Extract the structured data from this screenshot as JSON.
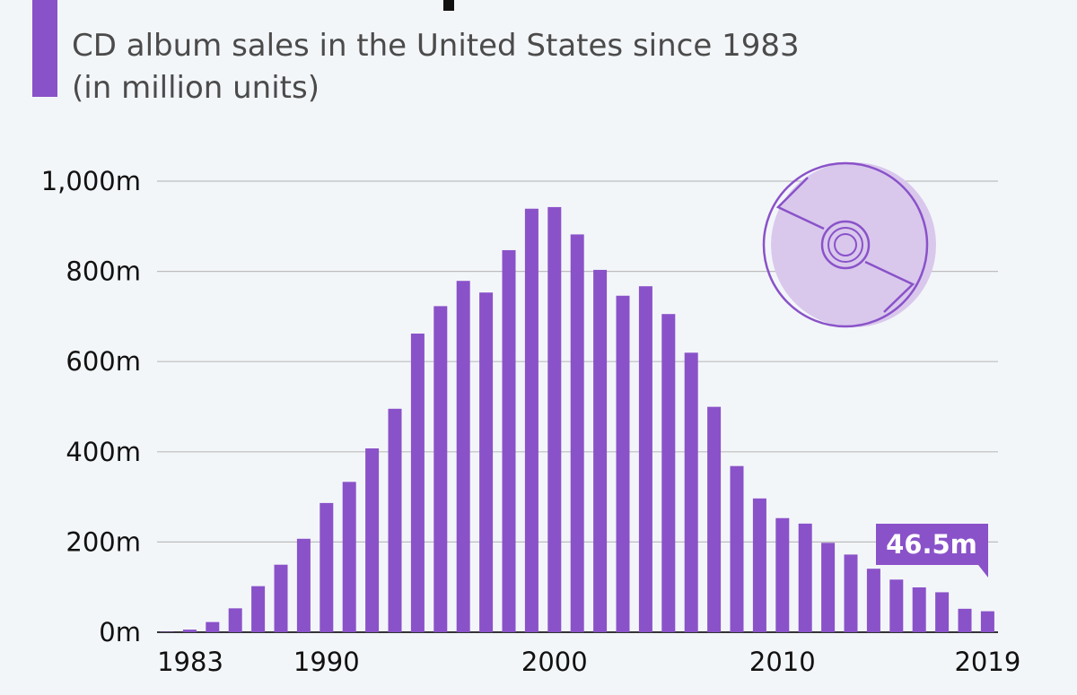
{
  "header": {
    "subtitle": "CD album sales in the United States since 1983\n(in million units)"
  },
  "chart_data": {
    "type": "bar",
    "title": "",
    "subtitle": "CD album sales in the United States since 1983 (in million units)",
    "xlabel": "",
    "ylabel": "",
    "ylim": [
      0,
      1000
    ],
    "y_ticks": [
      "0m",
      "200m",
      "400m",
      "600m",
      "800m",
      "1,000m"
    ],
    "x_tick_labels": [
      "1983",
      "1990",
      "2000",
      "2010",
      "2019"
    ],
    "grid": true,
    "bar_color": "#8a52c9",
    "categories": [
      "1983",
      "1984",
      "1985",
      "1986",
      "1987",
      "1988",
      "1989",
      "1990",
      "1991",
      "1992",
      "1993",
      "1994",
      "1995",
      "1996",
      "1997",
      "1998",
      "1999",
      "2000",
      "2001",
      "2002",
      "2003",
      "2004",
      "2005",
      "2006",
      "2007",
      "2008",
      "2009",
      "2010",
      "2011",
      "2012",
      "2013",
      "2014",
      "2015",
      "2016",
      "2017",
      "2018",
      "2019"
    ],
    "values": [
      0.8,
      5.8,
      22.6,
      53,
      102.1,
      149.7,
      207.2,
      286.5,
      333.3,
      407.5,
      495.4,
      662.1,
      722.9,
      778.9,
      753.1,
      847,
      938.9,
      942.5,
      881.9,
      803.3,
      746,
      767,
      705.4,
      619.7,
      499.7,
      368.4,
      296.6,
      253,
      240.8,
      198.2,
      172.2,
      140.8,
      116.7,
      99.4,
      88.6,
      52,
      46.5
    ],
    "annotation": {
      "label": "46.5m",
      "category": "2019"
    }
  },
  "icon": {
    "name": "compact-disc-icon",
    "fill": "#d9c8ec",
    "stroke": "#8a52c9"
  }
}
